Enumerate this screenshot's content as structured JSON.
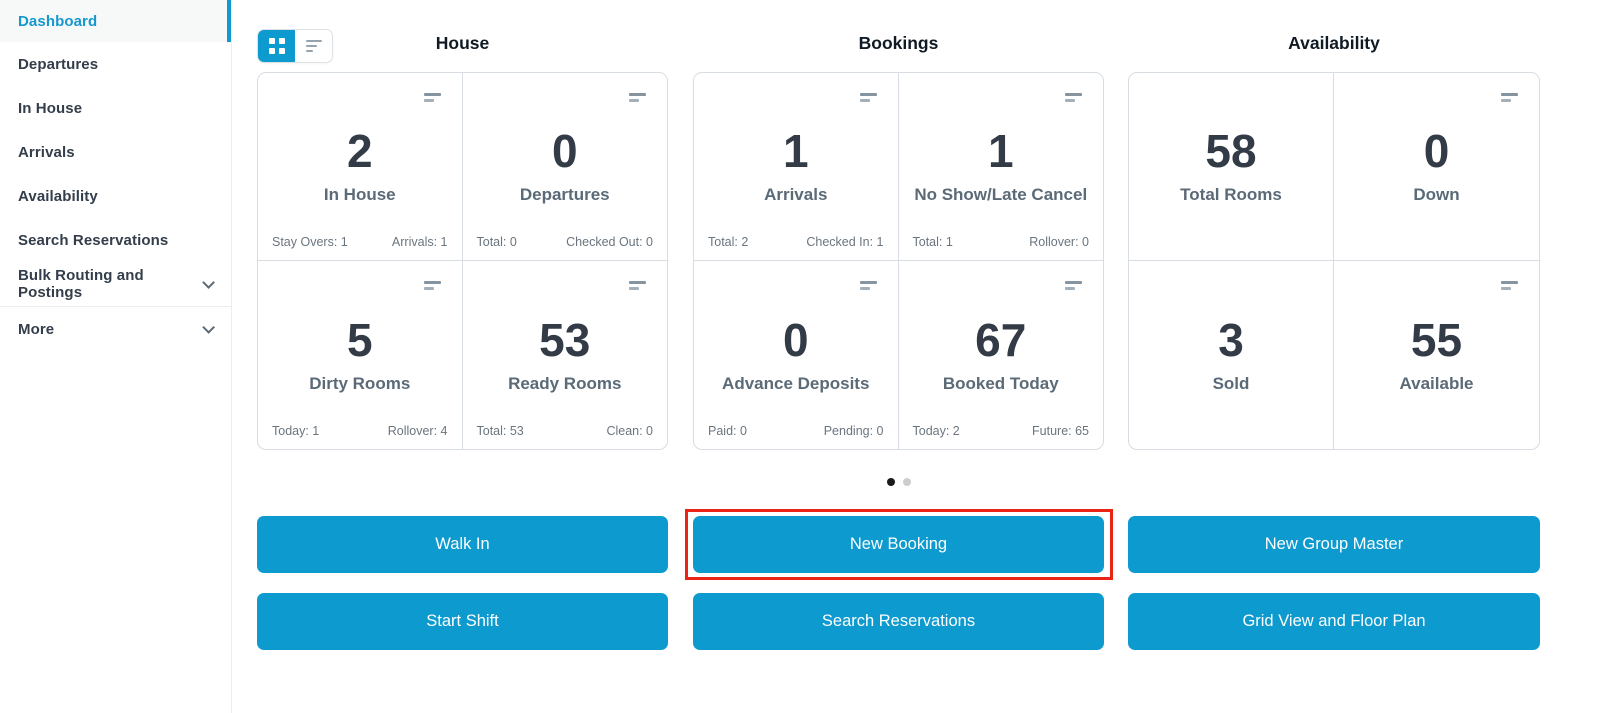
{
  "colors": {
    "accent": "#0d9ace",
    "highlight_border": "#ea2314",
    "card_border": "#d7dde2",
    "value_text": "#333b46",
    "label_text": "#5b6a77"
  },
  "sidebar": {
    "items": [
      {
        "label": "Dashboard",
        "active": true
      },
      {
        "label": "Departures"
      },
      {
        "label": "In House"
      },
      {
        "label": "Arrivals"
      },
      {
        "label": "Availability"
      },
      {
        "label": "Search Reservations"
      },
      {
        "label": "Bulk Routing and Postings",
        "has_chevron": true
      },
      {
        "label": "More",
        "has_chevron": true
      }
    ]
  },
  "view_toggle": {
    "active": "grid",
    "options": [
      "grid",
      "list"
    ]
  },
  "panels": [
    {
      "title": "House",
      "cards": [
        {
          "value": "2",
          "label": "In House",
          "footer_left": "Stay Overs: 1",
          "footer_right": "Arrivals: 1"
        },
        {
          "value": "0",
          "label": "Departures",
          "footer_left": "Total: 0",
          "footer_right": "Checked Out: 0"
        },
        {
          "value": "5",
          "label": "Dirty Rooms",
          "footer_left": "Today: 1",
          "footer_right": "Rollover: 4"
        },
        {
          "value": "53",
          "label": "Ready Rooms",
          "footer_left": "Total: 53",
          "footer_right": "Clean: 0"
        }
      ]
    },
    {
      "title": "Bookings",
      "cards": [
        {
          "value": "1",
          "label": "Arrivals",
          "footer_left": "Total: 2",
          "footer_right": "Checked In: 1"
        },
        {
          "value": "1",
          "label": "No Show/Late Cancel",
          "footer_left": "Total: 1",
          "footer_right": "Rollover: 0"
        },
        {
          "value": "0",
          "label": "Advance Deposits",
          "footer_left": "Paid: 0",
          "footer_right": "Pending: 0"
        },
        {
          "value": "67",
          "label": "Booked Today",
          "footer_left": "Today: 2",
          "footer_right": "Future: 65"
        }
      ]
    },
    {
      "title": "Availability",
      "cards": [
        {
          "value": "58",
          "label": "Total Rooms"
        },
        {
          "value": "0",
          "label": "Down"
        },
        {
          "value": "3",
          "label": "Sold"
        },
        {
          "value": "55",
          "label": "Available"
        }
      ]
    }
  ],
  "carousel": {
    "dot_count": 2,
    "active_dot": 1
  },
  "action_buttons": [
    {
      "label": "Walk In"
    },
    {
      "label": "New Booking",
      "highlighted": true
    },
    {
      "label": "New Group Master"
    },
    {
      "label": "Start Shift"
    },
    {
      "label": "Search Reservations"
    },
    {
      "label": "Grid View and Floor Plan"
    }
  ]
}
